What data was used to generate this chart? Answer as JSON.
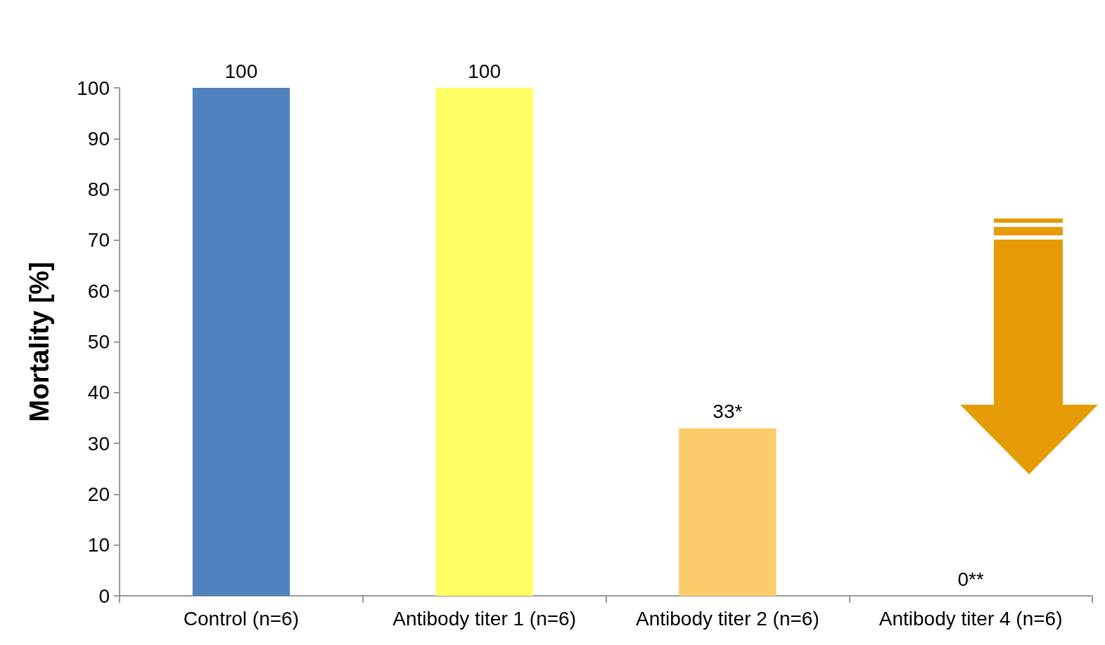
{
  "chart_data": {
    "type": "bar",
    "ylabel": "Mortality [%]",
    "categories": [
      "Control (n=6)",
      "Antibody titer 1 (n=6)",
      "Antibody titer 2 (n=6)",
      "Antibody titer 4 (n=6)"
    ],
    "values": [
      100,
      100,
      33,
      0
    ],
    "colors": [
      "#4f81bd",
      "#ffff66",
      "#fdcc6a",
      "#c47400"
    ],
    "value_labels": [
      "100",
      "100",
      "33*",
      "0**"
    ],
    "ylim": [
      0,
      100
    ],
    "yticks": [
      0,
      10,
      20,
      30,
      40,
      50,
      60,
      70,
      80,
      90,
      100
    ],
    "grid": false
  }
}
